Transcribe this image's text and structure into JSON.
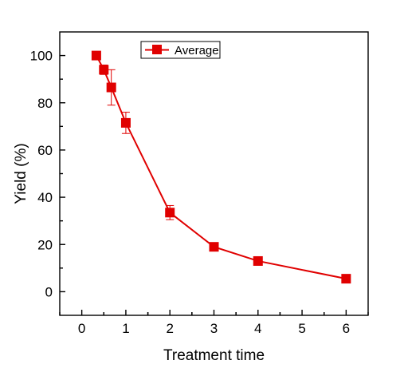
{
  "chart_data": {
    "type": "line",
    "xlabel": "Treatment time",
    "ylabel": "Yield (%)",
    "xlim": [
      -0.5,
      6.5
    ],
    "ylim": [
      -10,
      110
    ],
    "xticks": [
      "0",
      "1",
      "2",
      "3",
      "4",
      "5",
      "6"
    ],
    "yticks": [
      "0",
      "20",
      "40",
      "60",
      "80",
      "100"
    ],
    "grid": false,
    "legend": "top-center",
    "series": [
      {
        "name": "Average",
        "color": "#e00000",
        "marker": "square",
        "points": [
          {
            "x": 0.33,
            "y": 100,
            "err": 0
          },
          {
            "x": 0.5,
            "y": 94,
            "err": 2
          },
          {
            "x": 0.67,
            "y": 86.5,
            "err": 7.5
          },
          {
            "x": 1,
            "y": 71.5,
            "err": 4.5
          },
          {
            "x": 2,
            "y": 33.5,
            "err": 3
          },
          {
            "x": 3,
            "y": 19,
            "err": 1
          },
          {
            "x": 4,
            "y": 13,
            "err": 0.5
          },
          {
            "x": 6,
            "y": 5.5,
            "err": 0.5
          }
        ]
      }
    ]
  }
}
